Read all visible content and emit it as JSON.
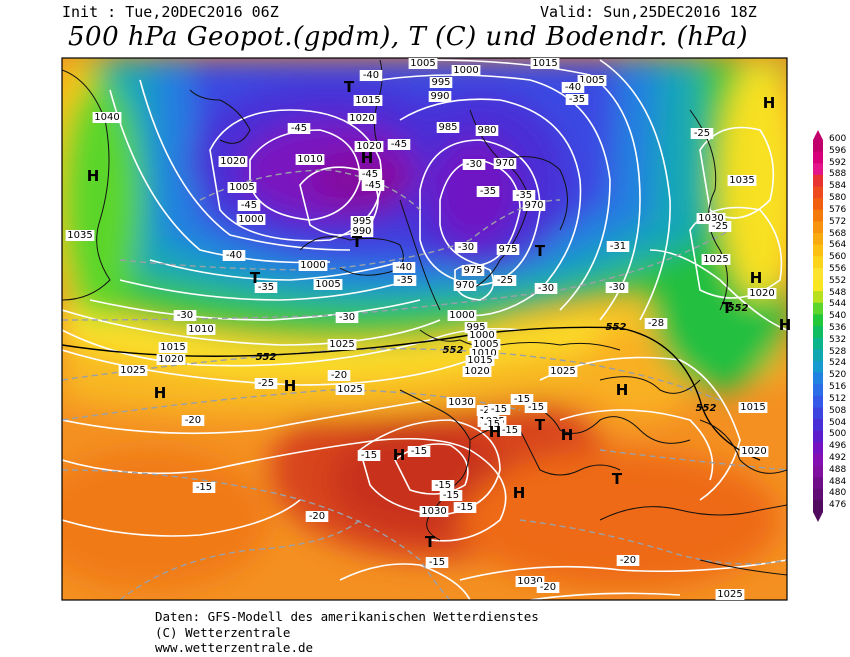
{
  "header": {
    "init": "Init : Tue,20DEC2016 06Z",
    "valid": "Valid: Sun,25DEC2016 18Z",
    "title": "500 hPa Geopot.(gpdm), T (C) und Bodendr. (hPa)"
  },
  "footer": {
    "line1": "Daten: GFS-Modell des amerikanischen Wetterdienstes",
    "line2": "(C) Wetterzentrale",
    "line3": "www.wetterzentrale.de"
  },
  "colorscale": {
    "labels": [
      "600",
      "596",
      "592",
      "588",
      "584",
      "580",
      "576",
      "572",
      "568",
      "564",
      "560",
      "556",
      "552",
      "548",
      "544",
      "540",
      "536",
      "532",
      "528",
      "524",
      "520",
      "516",
      "512",
      "508",
      "504",
      "500",
      "496",
      "492",
      "488",
      "484",
      "480",
      "476"
    ],
    "colors": [
      "#c2006b",
      "#d8007a",
      "#e4148a",
      "#e83232",
      "#ee4a1e",
      "#f25e10",
      "#f57a0c",
      "#f7930e",
      "#f9aa10",
      "#fbc012",
      "#fcd51a",
      "#fde22e",
      "#f8e620",
      "#b8e01c",
      "#5cd52c",
      "#22c83a",
      "#10bd60",
      "#0cb48c",
      "#10a8b0",
      "#169ad0",
      "#2282e2",
      "#2c6ee8",
      "#3458e8",
      "#3c44e0",
      "#4830d6",
      "#5c1ccc",
      "#7412c2",
      "#8410b4",
      "#8010a0",
      "#700e8a",
      "#600c74",
      "#500a5e"
    ]
  },
  "map": {
    "pressure_labels": [
      {
        "text": "1005"
      },
      {
        "text": "1000"
      },
      {
        "text": "1015"
      },
      {
        "text": "995"
      },
      {
        "text": "990"
      },
      {
        "text": "1005"
      },
      {
        "text": "1015"
      },
      {
        "text": "1020"
      },
      {
        "text": "985"
      },
      {
        "text": "980"
      },
      {
        "text": "1040"
      },
      {
        "text": "1020"
      },
      {
        "text": "1010"
      },
      {
        "text": "1020"
      },
      {
        "text": "970"
      },
      {
        "text": "1005"
      },
      {
        "text": "1000"
      },
      {
        "text": "995"
      },
      {
        "text": "990"
      },
      {
        "text": "970"
      },
      {
        "text": "1035"
      },
      {
        "text": "1030"
      },
      {
        "text": "1035"
      },
      {
        "text": "975"
      },
      {
        "text": "1000"
      },
      {
        "text": "975"
      },
      {
        "text": "970"
      },
      {
        "text": "1025"
      },
      {
        "text": "1005"
      },
      {
        "text": "1020"
      },
      {
        "text": "1010"
      },
      {
        "text": "995"
      },
      {
        "text": "1000"
      },
      {
        "text": "1005"
      },
      {
        "text": "1010"
      },
      {
        "text": "1015"
      },
      {
        "text": "1015"
      },
      {
        "text": "1025"
      },
      {
        "text": "1020"
      },
      {
        "text": "1020"
      },
      {
        "text": "1025"
      },
      {
        "text": "1025"
      },
      {
        "text": "1030"
      },
      {
        "text": "1035"
      },
      {
        "text": "1025"
      },
      {
        "text": "1015"
      },
      {
        "text": "1020"
      },
      {
        "text": "1030"
      },
      {
        "text": "1030"
      },
      {
        "text": "1025"
      },
      {
        "text": "1000"
      }
    ],
    "temp_labels": [
      {
        "text": "-40"
      },
      {
        "text": "-40"
      },
      {
        "text": "-35"
      },
      {
        "text": "-45"
      },
      {
        "text": "-45"
      },
      {
        "text": "-45"
      },
      {
        "text": "-45"
      },
      {
        "text": "-45"
      },
      {
        "text": "-25"
      },
      {
        "text": "-35"
      },
      {
        "text": "-30"
      },
      {
        "text": "-40"
      },
      {
        "text": "-35"
      },
      {
        "text": "-30"
      },
      {
        "text": "-35"
      },
      {
        "text": "-40"
      },
      {
        "text": "-35"
      },
      {
        "text": "-25"
      },
      {
        "text": "-30"
      },
      {
        "text": "-31"
      },
      {
        "text": "-25"
      },
      {
        "text": "-30"
      },
      {
        "text": "-30"
      },
      {
        "text": "-30"
      },
      {
        "text": "-25"
      },
      {
        "text": "-28"
      },
      {
        "text": "-20"
      },
      {
        "text": "-25"
      },
      {
        "text": "-20"
      },
      {
        "text": "-15"
      },
      {
        "text": "-15"
      },
      {
        "text": "-15"
      },
      {
        "text": "-15"
      },
      {
        "text": "-15"
      },
      {
        "text": "-15"
      },
      {
        "text": "-15"
      },
      {
        "text": "-15"
      },
      {
        "text": "-15"
      },
      {
        "text": "-15"
      },
      {
        "text": "-20"
      },
      {
        "text": "-15"
      },
      {
        "text": "-20"
      },
      {
        "text": "-15"
      },
      {
        "text": "-20"
      }
    ],
    "height_labels": [
      {
        "text": "552"
      },
      {
        "text": "552"
      },
      {
        "text": "552"
      },
      {
        "text": "552"
      },
      {
        "text": "552"
      }
    ],
    "highs": [
      "H",
      "H",
      "H",
      "H",
      "H",
      "H",
      "H",
      "H",
      "H",
      "H",
      "H",
      "H"
    ],
    "lows": [
      "T",
      "T",
      "T",
      "T",
      "T",
      "T",
      "T",
      "T"
    ]
  }
}
